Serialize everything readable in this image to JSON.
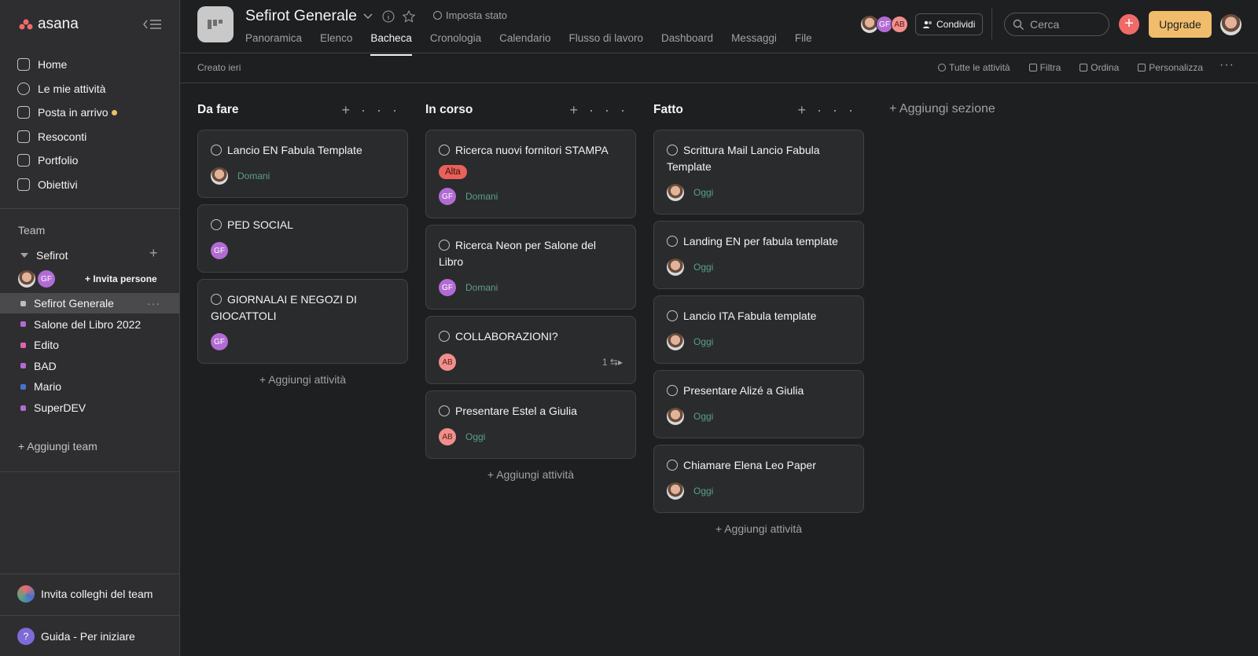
{
  "sidebar": {
    "logo": "asana",
    "nav": [
      "Home",
      "Le mie attività",
      "Posta in arrivo",
      "Resoconti",
      "Portfolio",
      "Obiettivi"
    ],
    "team_heading": "Team",
    "team_name": "Sefirot",
    "team_avatar": "GF",
    "invite": "Invita persone",
    "projects": [
      {
        "name": "Sefirot Generale",
        "color": "#bdbdbd"
      },
      {
        "name": "Salone del Libro 2022",
        "color": "#b36bd4"
      },
      {
        "name": "Edito",
        "color": "#e362b0"
      },
      {
        "name": "BAD",
        "color": "#b36bd4"
      },
      {
        "name": "Mario",
        "color": "#4573d2"
      },
      {
        "name": "SuperDEV",
        "color": "#b36bd4"
      }
    ],
    "add_team": "Aggiungi team",
    "invite_colleagues": "Invita colleghi del team",
    "help": "Guida - Per iniziare"
  },
  "header": {
    "title": "Sefirot Generale",
    "status": "Imposta stato",
    "tabs": [
      "Panoramica",
      "Elenco",
      "Bacheca",
      "Cronologia",
      "Calendario",
      "Flusso di lavoro",
      "Dashboard",
      "Messaggi",
      "File"
    ],
    "members": [
      "GF",
      "AB"
    ],
    "share": "Condividi",
    "search": "Cerca",
    "upgrade": "Upgrade"
  },
  "toolbar": {
    "created": "Creato ieri",
    "actions": [
      "Tutte le attività",
      "Filtra",
      "Ordina",
      "Personalizza"
    ]
  },
  "board": {
    "columns": [
      {
        "title": "Da fare",
        "tasks": [
          {
            "name": "Lancio EN Fabula Template",
            "due": "Domani"
          },
          {
            "name": "PED SOCIAL",
            "assignee": "GF"
          },
          {
            "name": "GIORNALAI E NEGOZI DI GIOCATTOLI",
            "assignee": "GF"
          }
        ]
      },
      {
        "title": "In corso",
        "tasks": [
          {
            "name": "Ricerca nuovi fornitori STAMPA",
            "tag": "Alta",
            "assignee": "GF",
            "due": "Domani"
          },
          {
            "name": "Ricerca Neon per Salone del Libro",
            "assignee": "GF",
            "due": "Domani"
          },
          {
            "name": "COLLABORAZIONI?",
            "assignee": "AB",
            "subtasks": 1
          },
          {
            "name": "Presentare Estel a Giulia",
            "assignee": "AB",
            "due": "Oggi"
          }
        ]
      },
      {
        "title": "Fatto",
        "tasks": [
          {
            "name": "Scrittura Mail Lancio Fabula Template",
            "due": "Oggi"
          },
          {
            "name": "Landing EN per fabula template",
            "due": "Oggi"
          },
          {
            "name": "Lancio ITA Fabula template",
            "due": "Oggi"
          },
          {
            "name": "Presentare Alizé a Giulia",
            "due": "Oggi"
          },
          {
            "name": "Chiamare Elena Leo Paper",
            "due": "Oggi"
          }
        ]
      }
    ],
    "add_task": "Aggiungi attività",
    "add_section": "Aggiungi sezione"
  }
}
